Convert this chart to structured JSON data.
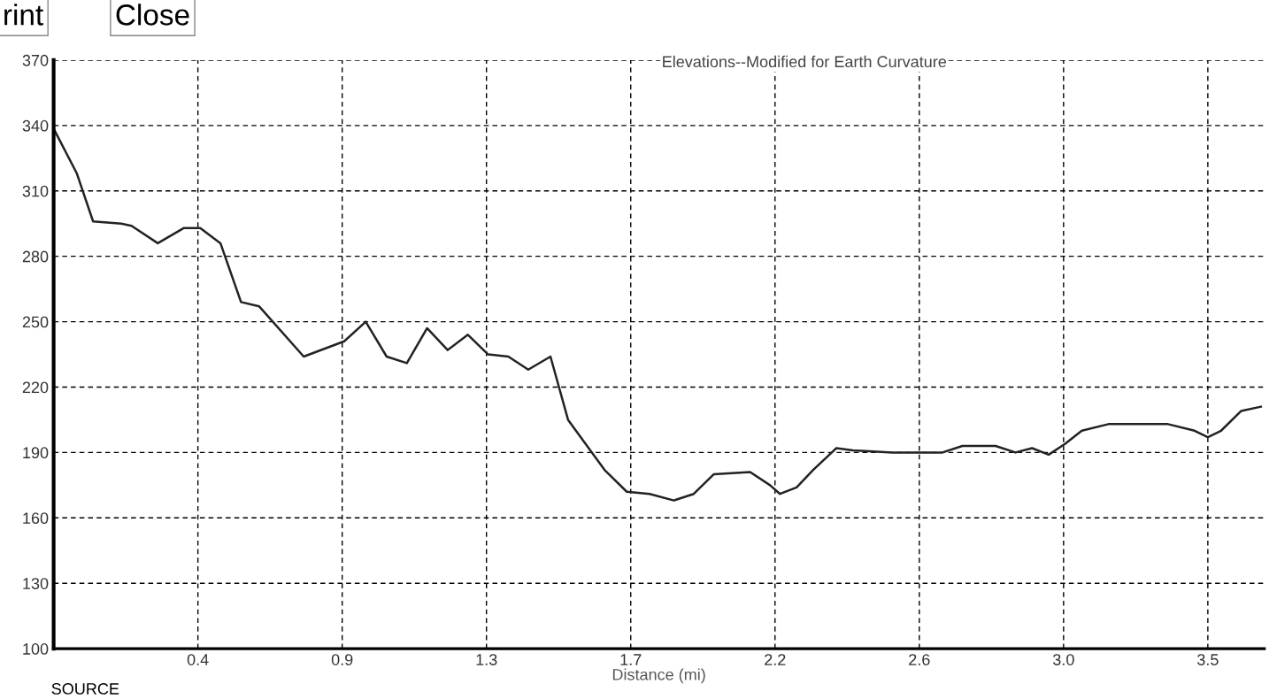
{
  "chart_data": {
    "type": "line",
    "title": "Elevations--Modified for Earth Curvature",
    "xlabel": "Distance (mi)",
    "annotations": [
      "rint",
      "Close",
      "SOURCE"
    ],
    "series": [
      {
        "color": "#222222",
        "x": [
          0.002,
          0.07,
          0.119,
          0.204,
          0.235,
          0.314,
          0.393,
          0.442,
          0.503,
          0.565,
          0.62,
          0.754,
          0.876,
          0.941,
          1.004,
          1.065,
          1.126,
          1.188,
          1.249,
          1.31,
          1.371,
          1.431,
          1.498,
          1.551,
          1.661,
          1.728,
          1.797,
          1.87,
          1.93,
          1.99,
          2.1,
          2.16,
          2.19,
          2.24,
          2.29,
          2.36,
          2.41,
          2.53,
          2.68,
          2.74,
          2.84,
          2.9,
          2.95,
          3.0,
          3.05,
          3.1,
          3.18,
          3.36,
          3.44,
          3.48,
          3.52,
          3.58,
          3.64
        ],
        "values": [
          338,
          318,
          296,
          295,
          294,
          286,
          293,
          293,
          286,
          259,
          257,
          234,
          241,
          250,
          234,
          231,
          247,
          237,
          244,
          235,
          234,
          228,
          234,
          205,
          182,
          172,
          171,
          168,
          171,
          180,
          181,
          175,
          171,
          174,
          182,
          192,
          191,
          190,
          190,
          193,
          193,
          190,
          192,
          189,
          194,
          200,
          203,
          203,
          200,
          197,
          200,
          209,
          211
        ]
      }
    ],
    "xlim": [
      0,
      3.65
    ],
    "ylim": [
      100,
      370
    ],
    "xticks": [
      {
        "value": 0.435,
        "label": "0.4"
      },
      {
        "value": 0.87,
        "label": "0.9"
      },
      {
        "value": 1.305,
        "label": "1.3"
      },
      {
        "value": 1.74,
        "label": "1.7"
      },
      {
        "value": 2.175,
        "label": "2.2"
      },
      {
        "value": 2.61,
        "label": "2.6"
      },
      {
        "value": 3.045,
        "label": "3.0"
      },
      {
        "value": 3.48,
        "label": "3.5"
      }
    ],
    "yticks": [
      100,
      130,
      160,
      190,
      220,
      250,
      280,
      310,
      340,
      370
    ],
    "grid": true,
    "line_style": "solid"
  }
}
